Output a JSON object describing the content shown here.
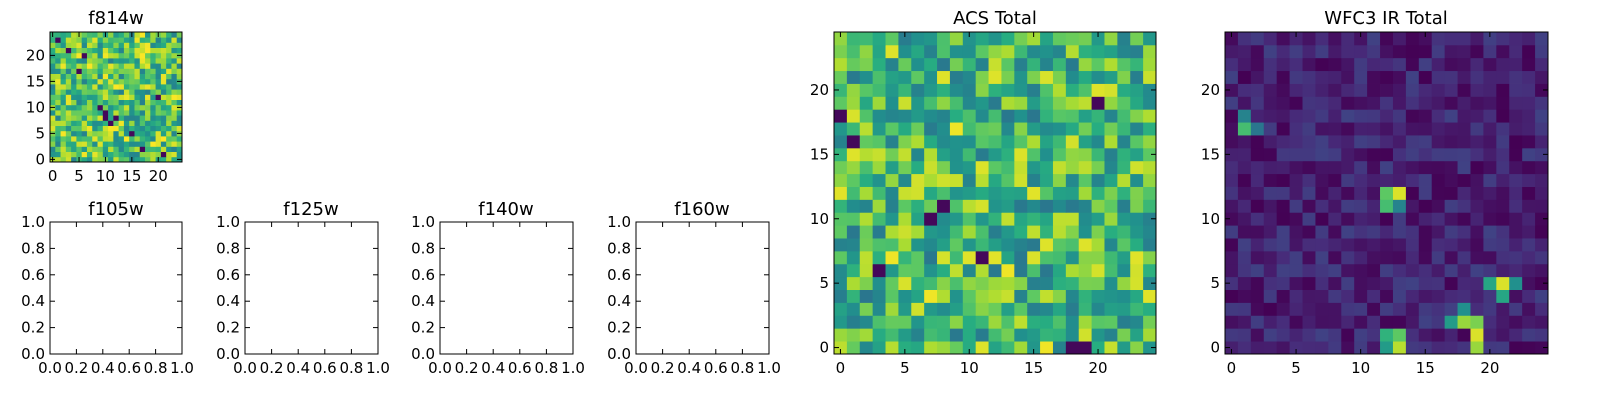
{
  "chart_data": [
    {
      "type": "heatmap",
      "title": "f814w",
      "grid_size": [
        25,
        25
      ],
      "colormap": "viridis",
      "xticks": [
        0,
        5,
        10,
        15,
        20
      ],
      "yticks": [
        0,
        5,
        10,
        15,
        20
      ],
      "xlim": [
        -0.5,
        24.5
      ],
      "ylim": [
        -0.5,
        24.5
      ],
      "color_range": [
        0.0,
        1.0
      ],
      "values": [],
      "low_cells": [
        [
          21,
          1
        ],
        [
          17,
          2
        ],
        [
          15,
          5
        ],
        [
          11,
          7
        ],
        [
          12,
          8
        ],
        [
          10,
          9
        ],
        [
          10,
          8
        ],
        [
          9,
          10
        ],
        [
          5,
          17
        ],
        [
          6,
          20
        ],
        [
          3,
          21
        ],
        [
          1,
          23
        ],
        [
          20,
          12
        ]
      ],
      "base_level": 0.72,
      "variation": 0.28
    },
    {
      "type": "heatmap",
      "title": "ACS Total",
      "grid_size": [
        25,
        25
      ],
      "colormap": "viridis",
      "xticks": [
        0,
        5,
        10,
        15,
        20
      ],
      "yticks": [
        0,
        5,
        10,
        15,
        20
      ],
      "xlim": [
        -0.5,
        24.5
      ],
      "ylim": [
        -0.5,
        24.5
      ],
      "color_range": [
        0.0,
        1.0
      ],
      "values": [],
      "low_cells": [
        [
          7,
          10
        ],
        [
          8,
          11
        ],
        [
          3,
          6
        ],
        [
          11,
          7
        ],
        [
          1,
          16
        ],
        [
          20,
          19
        ],
        [
          18,
          0
        ],
        [
          19,
          0
        ],
        [
          0,
          18
        ]
      ],
      "high_cells": [
        [
          9,
          17
        ],
        [
          16,
          0
        ],
        [
          13,
          6
        ],
        [
          7,
          4
        ],
        [
          4,
          7
        ]
      ],
      "base_level": 0.68,
      "variation": 0.28
    },
    {
      "type": "heatmap",
      "title": "WFC3 IR Total",
      "grid_size": [
        25,
        25
      ],
      "colormap": "viridis",
      "xticks": [
        0,
        5,
        10,
        15,
        20
      ],
      "yticks": [
        0,
        5,
        10,
        15,
        20
      ],
      "xlim": [
        -0.5,
        24.5
      ],
      "ylim": [
        -0.5,
        24.5
      ],
      "color_range": [
        0.0,
        1.0
      ],
      "values": [],
      "hot_cells": [
        [
          12,
          12,
          0.75
        ],
        [
          13,
          12,
          0.95
        ],
        [
          12,
          11,
          0.7
        ],
        [
          13,
          11,
          0.45
        ],
        [
          1,
          17,
          0.7
        ],
        [
          1,
          18,
          0.45
        ],
        [
          2,
          17,
          0.4
        ],
        [
          12,
          1,
          0.65
        ],
        [
          13,
          1,
          0.75
        ],
        [
          13,
          0,
          0.9
        ],
        [
          12,
          0,
          0.55
        ],
        [
          18,
          2,
          0.85
        ],
        [
          19,
          2,
          0.8
        ],
        [
          19,
          1,
          0.95
        ],
        [
          19,
          0,
          0.85
        ],
        [
          18,
          3,
          0.5
        ],
        [
          17,
          2,
          0.55
        ],
        [
          21,
          5,
          0.95
        ],
        [
          20,
          5,
          0.6
        ],
        [
          21,
          4,
          0.6
        ],
        [
          22,
          5,
          0.5
        ]
      ],
      "base_level": 0.1,
      "variation": 0.1
    },
    {
      "type": "empty",
      "title": "f105w",
      "xticks": [
        "0.0",
        "0.2",
        "0.4",
        "0.6",
        "0.8",
        "1.0"
      ],
      "yticks": [
        "0.0",
        "0.2",
        "0.4",
        "0.6",
        "0.8",
        "1.0"
      ],
      "xlim": [
        0,
        1
      ],
      "ylim": [
        0,
        1
      ]
    },
    {
      "type": "empty",
      "title": "f125w",
      "xticks": [
        "0.0",
        "0.2",
        "0.4",
        "0.6",
        "0.8",
        "1.0"
      ],
      "yticks": [
        "0.0",
        "0.2",
        "0.4",
        "0.6",
        "0.8",
        "1.0"
      ],
      "xlim": [
        0,
        1
      ],
      "ylim": [
        0,
        1
      ]
    },
    {
      "type": "empty",
      "title": "f140w",
      "xticks": [
        "0.0",
        "0.2",
        "0.4",
        "0.6",
        "0.8",
        "1.0"
      ],
      "yticks": [
        "0.0",
        "0.2",
        "0.4",
        "0.6",
        "0.8",
        "1.0"
      ],
      "xlim": [
        0,
        1
      ],
      "ylim": [
        0,
        1
      ]
    },
    {
      "type": "empty",
      "title": "f160w",
      "xticks": [
        "0.0",
        "0.2",
        "0.4",
        "0.6",
        "0.8",
        "1.0"
      ],
      "yticks": [
        "0.0",
        "0.2",
        "0.4",
        "0.6",
        "0.8",
        "1.0"
      ],
      "xlim": [
        0,
        1
      ],
      "ylim": [
        0,
        1
      ]
    }
  ]
}
